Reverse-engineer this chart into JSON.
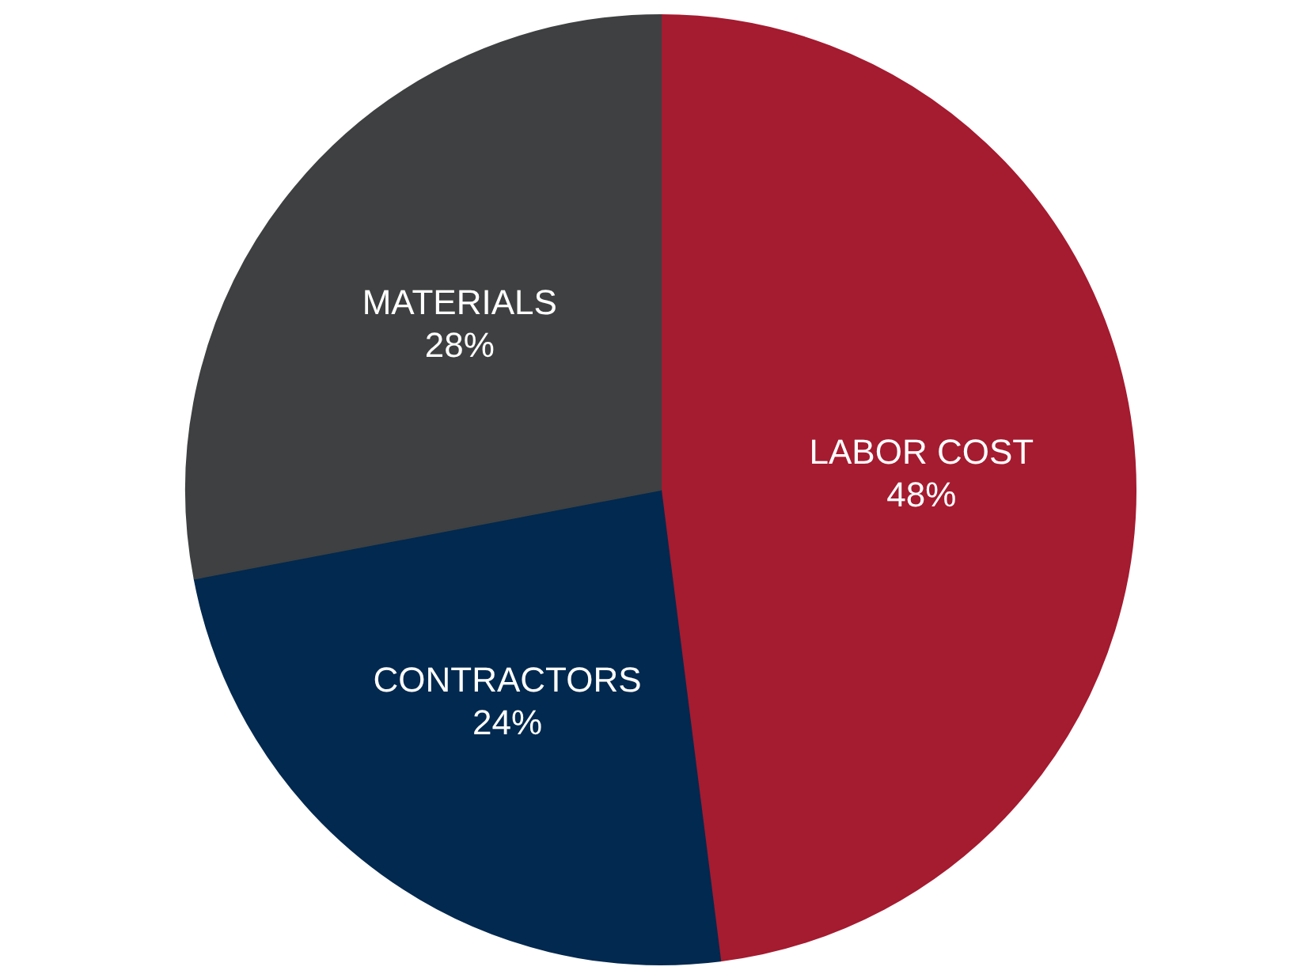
{
  "chart_data": {
    "type": "pie",
    "categories": [
      "LABOR COST",
      "CONTRACTORS",
      "MATERIALS"
    ],
    "values": [
      48,
      24,
      28
    ],
    "value_labels": [
      "48%",
      "24%",
      "28%"
    ],
    "colors": [
      "#a51b30",
      "#02294f",
      "#3e4041"
    ]
  }
}
